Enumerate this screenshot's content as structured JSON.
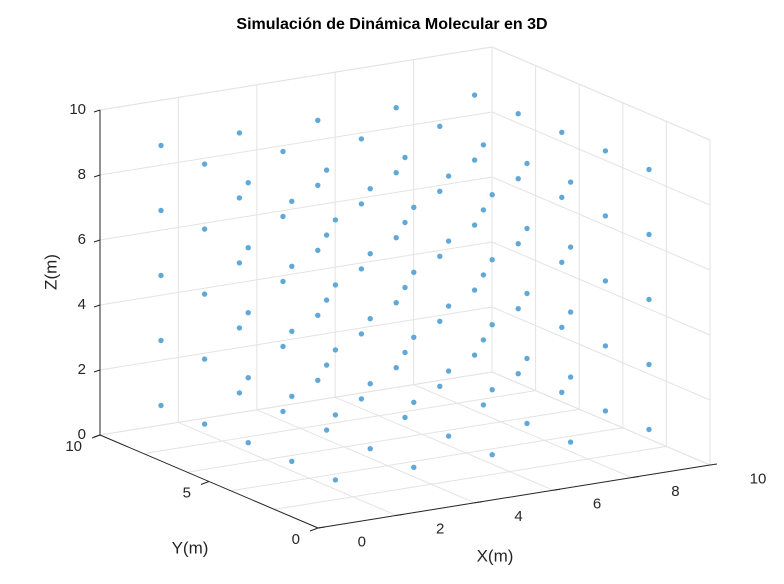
{
  "chart_data": {
    "type": "scatter",
    "title": "Simulación de Dinámica Molecular en 3D",
    "xlabel": "X(m)",
    "ylabel": "Y(m)",
    "zlabel": "Z(m)",
    "xlim": [
      0,
      10
    ],
    "ylim": [
      0,
      10
    ],
    "zlim": [
      0,
      10
    ],
    "xticks": [
      "0",
      "2",
      "4",
      "6",
      "8",
      "10"
    ],
    "yticks": [
      "0",
      "5",
      "10"
    ],
    "zticks": [
      "0",
      "2",
      "4",
      "6",
      "8",
      "10"
    ],
    "grid": true,
    "marker_color": "#5fa8d8",
    "points": {
      "grid_values_x": [
        1,
        3,
        5,
        7,
        9
      ],
      "grid_values_y": [
        1,
        3,
        5,
        7,
        9
      ],
      "grid_values_z": [
        1,
        3,
        5,
        7,
        9
      ],
      "description_count": 125
    }
  }
}
